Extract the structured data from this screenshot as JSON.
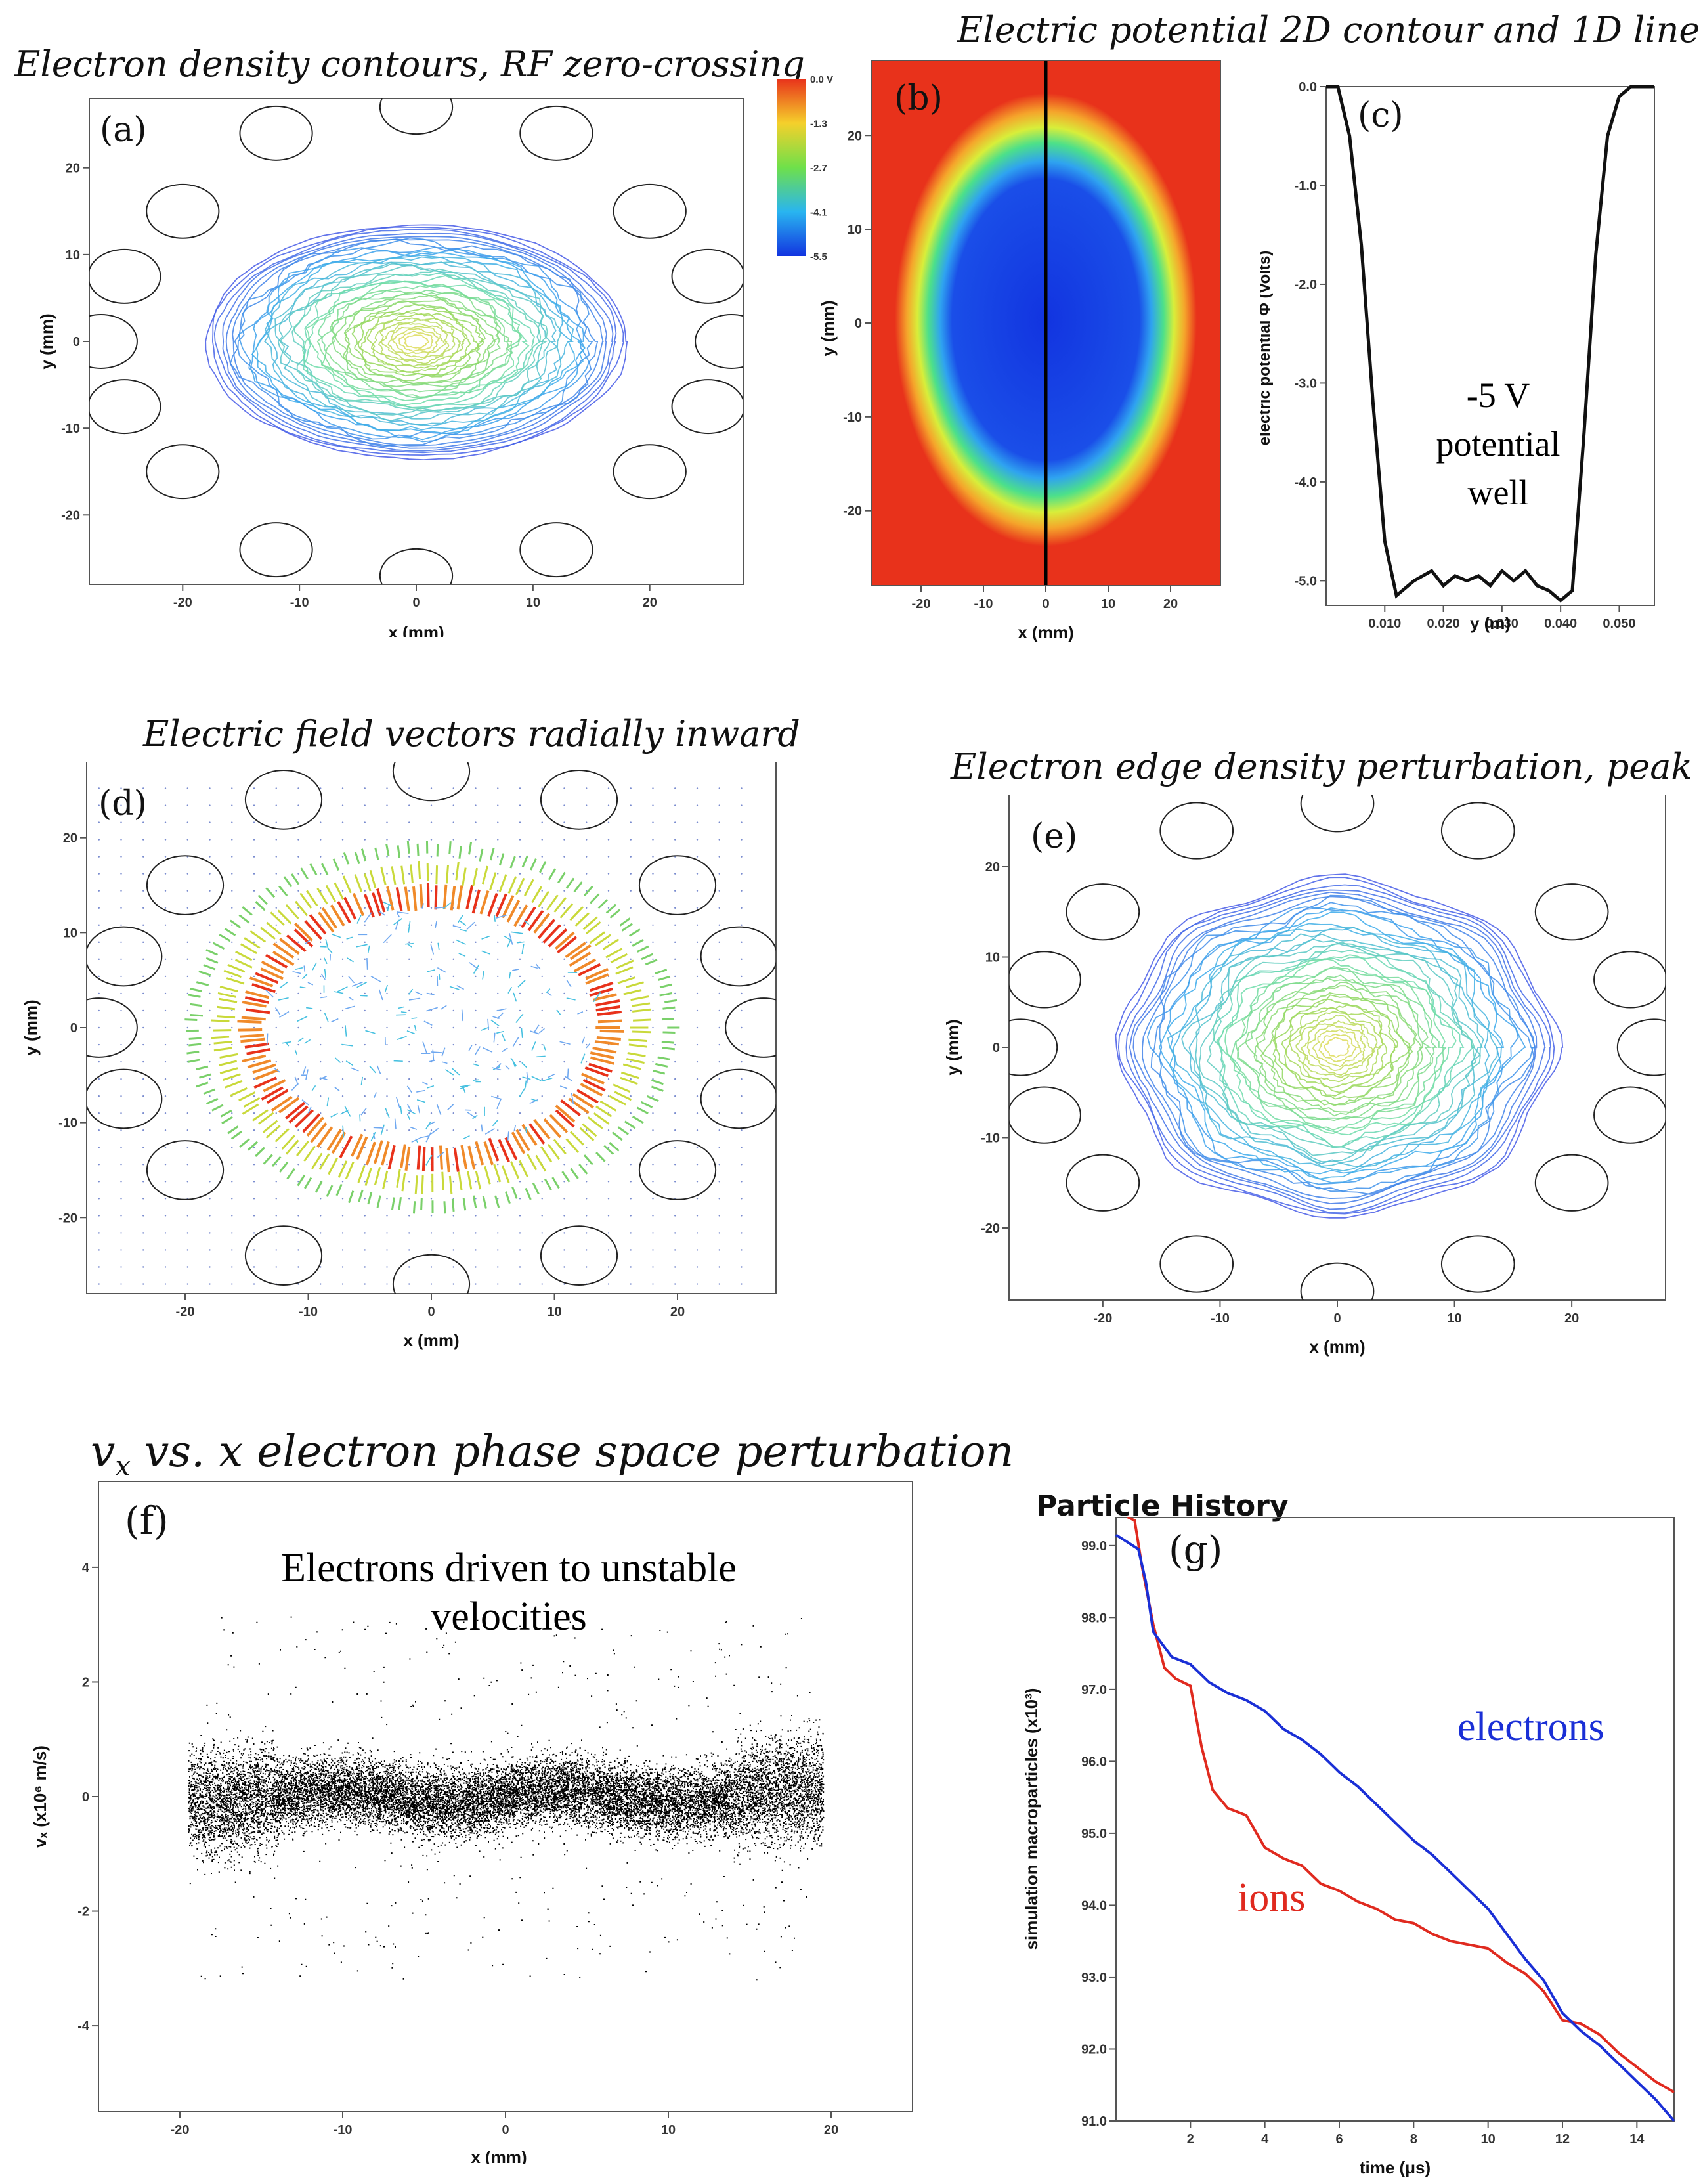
{
  "titles": {
    "a": "Electron density contours, RF zero-crossing",
    "bc": "Electric potential 2D contour and 1D lineout",
    "d": "Electric field vectors radially inward",
    "e": "Electron edge density perturbation, peak RF",
    "f_prefix": "v",
    "f_sub": "x",
    "f_rest": " vs. x electron phase space perturbation",
    "g": "Particle History"
  },
  "labels": {
    "a": "(a)",
    "b": "(b)",
    "c": "(c)",
    "d": "(d)",
    "e": "(e)",
    "f": "(f)",
    "g": "(g)"
  },
  "annotations": {
    "c_line1": "-5 V",
    "c_line2": "potential",
    "c_line3": "well",
    "f_line1": "Electrons driven to unstable",
    "f_line2": "velocities",
    "g_electrons": "electrons",
    "g_ions": "ions"
  },
  "colors": {
    "electrons": "#1a2fd6",
    "ions": "#e02a1f",
    "hot": "#e8321b",
    "cold": "#1235e0"
  },
  "chart_data": [
    {
      "id": "a",
      "type": "heatmap",
      "xlabel": "x (mm)",
      "ylabel": "y (mm)",
      "xticks": [
        -20,
        -10,
        0,
        10,
        20
      ],
      "yticks": [
        -20,
        -10,
        0,
        10,
        20
      ],
      "xlim": [
        -28,
        28
      ],
      "ylim": [
        -28,
        28
      ]
    },
    {
      "id": "b",
      "type": "heatmap",
      "xlabel": "x (mm)",
      "ylabel": "y (mm)",
      "xticks": [
        -20,
        -10,
        0,
        10,
        20
      ],
      "yticks": [
        -20,
        -10,
        0,
        10,
        20
      ],
      "xlim": [
        -28,
        28
      ],
      "ylim": [
        -28,
        28
      ],
      "colorbar": {
        "labels": [
          "0.0 V",
          "-1.3",
          "-2.7",
          "-4.1",
          "-5.5"
        ],
        "range": [
          -5.5,
          0
        ]
      }
    },
    {
      "id": "c",
      "type": "line",
      "xlabel": "y (m)",
      "ylabel": "electric potential Φ (Volts)",
      "xticks": [
        "0.010",
        "0.020",
        "0.030",
        "0.040",
        "0.050"
      ],
      "yticks": [
        "0.0",
        "-1.0",
        "-2.0",
        "-3.0",
        "-4.0",
        "-5.0"
      ],
      "xlim": [
        0.0,
        0.056
      ],
      "ylim": [
        -5.25,
        0.0
      ],
      "x": [
        0.0,
        0.002,
        0.004,
        0.006,
        0.008,
        0.01,
        0.012,
        0.013,
        0.015,
        0.018,
        0.02,
        0.022,
        0.024,
        0.026,
        0.028,
        0.03,
        0.032,
        0.034,
        0.036,
        0.038,
        0.04,
        0.042,
        0.044,
        0.046,
        0.048,
        0.05,
        0.052,
        0.054,
        0.056
      ],
      "y": [
        0.0,
        0.0,
        -0.5,
        -1.6,
        -3.2,
        -4.6,
        -5.15,
        -5.1,
        -5.0,
        -4.9,
        -5.05,
        -4.95,
        -5.0,
        -4.95,
        -5.05,
        -4.9,
        -5.0,
        -4.9,
        -5.05,
        -5.1,
        -5.2,
        -5.1,
        -3.5,
        -1.7,
        -0.5,
        -0.1,
        0.0,
        0.0,
        0.0
      ]
    },
    {
      "id": "d",
      "type": "scatter",
      "xlabel": "x (mm)",
      "ylabel": "y (mm)",
      "xticks": [
        -20,
        -10,
        0,
        10,
        20
      ],
      "yticks": [
        -20,
        -10,
        0,
        10,
        20
      ],
      "xlim": [
        -28,
        28
      ],
      "ylim": [
        -28,
        28
      ]
    },
    {
      "id": "e",
      "type": "heatmap",
      "xlabel": "x (mm)",
      "ylabel": "y (mm)",
      "xticks": [
        -20,
        -10,
        0,
        10,
        20
      ],
      "yticks": [
        -20,
        -10,
        0,
        10,
        20
      ],
      "xlim": [
        -28,
        28
      ],
      "ylim": [
        -28,
        28
      ]
    },
    {
      "id": "f",
      "type": "scatter",
      "xlabel": "x (mm)",
      "ylabel": "vₓ (x10⁶ m/s)",
      "xticks": [
        -20,
        -10,
        0,
        10,
        20
      ],
      "yticks": [
        -4,
        -2,
        0,
        2,
        4
      ],
      "xlim": [
        -25,
        25
      ],
      "ylim": [
        -5.5,
        5.5
      ]
    },
    {
      "id": "g",
      "type": "line",
      "title": "Particle History",
      "xlabel": "time (μs)",
      "ylabel": "simulation macroparticles (x10³)",
      "xticks": [
        2,
        4,
        6,
        8,
        10,
        12,
        14
      ],
      "yticks": [
        "91.0",
        "92.0",
        "93.0",
        "94.0",
        "95.0",
        "96.0",
        "97.0",
        "98.0",
        "99.0"
      ],
      "xlim": [
        0,
        15
      ],
      "ylim": [
        91.0,
        99.4
      ],
      "series": [
        {
          "name": "electrons",
          "x": [
            0.0,
            0.3,
            0.6,
            0.8,
            1.0,
            1.5,
            2.0,
            2.5,
            3.0,
            3.5,
            4.0,
            4.5,
            5.0,
            5.5,
            6.0,
            6.5,
            7.0,
            7.5,
            8.0,
            8.5,
            9.0,
            9.5,
            10.0,
            10.5,
            11.0,
            11.5,
            12.0,
            12.5,
            13.0,
            13.5,
            14.0,
            14.5,
            15.0
          ],
          "y": [
            99.15,
            99.05,
            98.95,
            98.5,
            97.8,
            97.45,
            97.35,
            97.1,
            96.95,
            96.85,
            96.7,
            96.45,
            96.3,
            96.1,
            95.85,
            95.65,
            95.4,
            95.15,
            94.9,
            94.7,
            94.45,
            94.2,
            93.95,
            93.6,
            93.25,
            92.95,
            92.5,
            92.25,
            92.05,
            91.8,
            91.55,
            91.3,
            91.0
          ]
        },
        {
          "name": "ions",
          "x": [
            0.3,
            0.5,
            0.7,
            1.0,
            1.3,
            1.6,
            2.0,
            2.3,
            2.6,
            3.0,
            3.5,
            4.0,
            4.5,
            5.0,
            5.5,
            6.0,
            6.5,
            7.0,
            7.5,
            8.0,
            8.5,
            9.0,
            9.5,
            10.0,
            10.5,
            11.0,
            11.5,
            12.0,
            12.5,
            13.0,
            13.5,
            14.0,
            14.5,
            15.0
          ],
          "y": [
            99.4,
            99.35,
            98.7,
            97.9,
            97.3,
            97.15,
            97.05,
            96.2,
            95.6,
            95.35,
            95.25,
            94.8,
            94.65,
            94.55,
            94.3,
            94.2,
            94.05,
            93.95,
            93.8,
            93.75,
            93.6,
            93.5,
            93.45,
            93.4,
            93.2,
            93.05,
            92.8,
            92.4,
            92.35,
            92.2,
            91.95,
            91.75,
            91.55,
            91.4
          ]
        }
      ]
    }
  ]
}
